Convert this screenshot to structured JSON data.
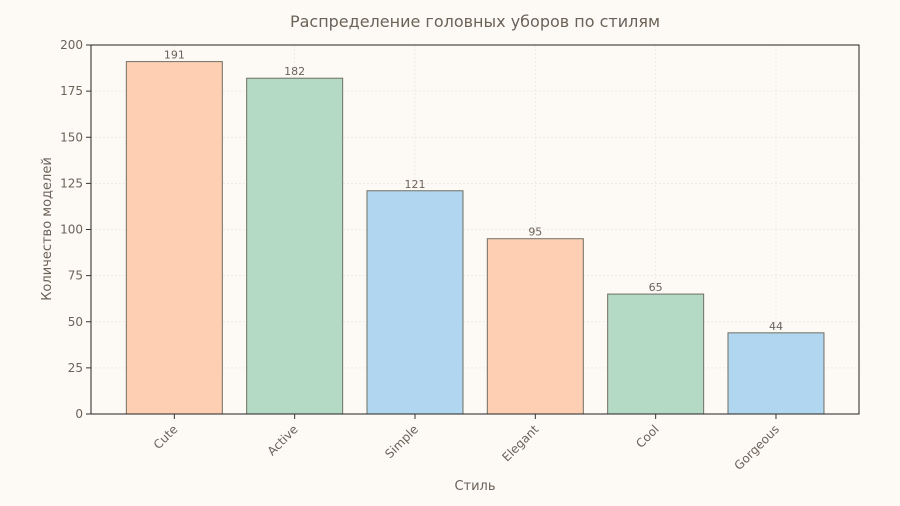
{
  "chart_data": {
    "type": "bar",
    "title": "Распределение головных уборов по стилям",
    "xlabel": "Стиль",
    "ylabel": "Количество моделей",
    "categories": [
      "Cute",
      "Active",
      "Simple",
      "Elegant",
      "Cool",
      "Gorgeous"
    ],
    "values": [
      191,
      182,
      121,
      95,
      65,
      44
    ],
    "ylim": [
      0,
      200
    ],
    "yticks": [
      0,
      25,
      50,
      75,
      100,
      125,
      150,
      175,
      200
    ],
    "bar_colors": [
      "#ffcfb4",
      "#b4d9c4",
      "#b0d6f0",
      "#ffcfb4",
      "#b4d9c4",
      "#b0d6f0"
    ],
    "bar_edge_color": "#6f6f63",
    "grid": true,
    "legend": "none",
    "background": "#fdfaf6",
    "text_color": "#6b6258"
  }
}
